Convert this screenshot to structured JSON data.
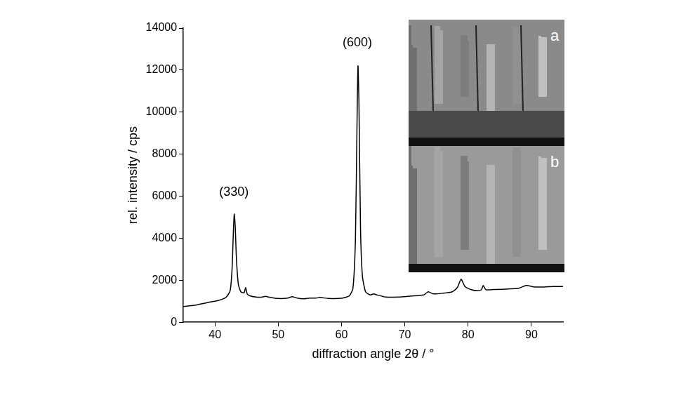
{
  "chart_data": {
    "type": "line",
    "x_label": "diffraction angle 2θ / °",
    "y_label": "rel. intensity / cps",
    "x": [
      35,
      36,
      37,
      38,
      39,
      40,
      41,
      41.8,
      42.4,
      42.7,
      42.9,
      43.05,
      43.2,
      43.4,
      43.7,
      44.1,
      44.6,
      44.85,
      45.1,
      45.6,
      46.5,
      47.5,
      48,
      48.5,
      50,
      51.5,
      52.2,
      53,
      54,
      55,
      56,
      56.5,
      58,
      60,
      61.2,
      61.8,
      62.2,
      62.45,
      62.6,
      62.75,
      63,
      63.3,
      63.8,
      64.5,
      65.1,
      65.6,
      67,
      69,
      71,
      73,
      73.7,
      74.5,
      76,
      77.5,
      78.3,
      78.9,
      79.5,
      80.5,
      81.5,
      82.1,
      82.4,
      82.8,
      84,
      86,
      88,
      89.2,
      90.5,
      92,
      93.5,
      95
    ],
    "values": [
      750,
      780,
      820,
      880,
      950,
      1000,
      1080,
      1200,
      1500,
      2500,
      4200,
      5150,
      4600,
      3000,
      1800,
      1450,
      1400,
      1650,
      1350,
      1250,
      1200,
      1200,
      1230,
      1200,
      1130,
      1150,
      1220,
      1150,
      1120,
      1150,
      1150,
      1180,
      1130,
      1140,
      1250,
      1600,
      4000,
      9500,
      12200,
      10500,
      4500,
      2200,
      1450,
      1300,
      1350,
      1300,
      1200,
      1200,
      1250,
      1300,
      1450,
      1350,
      1380,
      1450,
      1650,
      2050,
      1700,
      1550,
      1500,
      1550,
      1750,
      1550,
      1560,
      1580,
      1620,
      1750,
      1680,
      1680,
      1700,
      1700
    ],
    "color": "#000000",
    "xlim": [
      35,
      95
    ],
    "xticks": [
      40,
      50,
      60,
      70,
      80,
      90
    ],
    "ylim": [
      0,
      14000
    ],
    "yticks": [
      0,
      2000,
      4000,
      6000,
      8000,
      10000,
      12000,
      14000
    ],
    "grid": false,
    "annotations": [
      {
        "text": "(330)",
        "x": 43,
        "y": 6200
      },
      {
        "text": "(600)",
        "x": 62.5,
        "y": 13300
      }
    ],
    "insets": [
      "a",
      "b"
    ]
  }
}
